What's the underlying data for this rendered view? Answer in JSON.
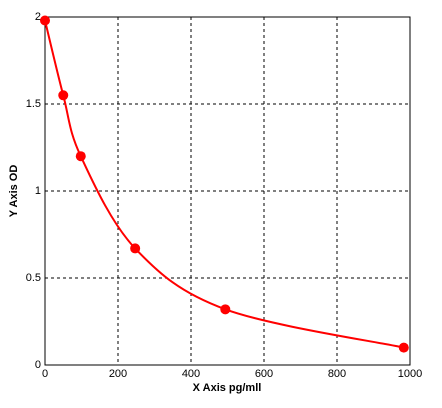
{
  "chart_data": {
    "type": "scatter",
    "x_label": "X Axis pg/mll",
    "y_label": "Y Axis OD",
    "x": [
      0,
      50,
      98,
      247,
      494,
      983
    ],
    "values": [
      1.98,
      1.55,
      1.2,
      0.67,
      0.32,
      0.1
    ],
    "color": "#ff0000",
    "line": "smooth",
    "xlim": [
      0,
      1000
    ],
    "ylim": [
      0,
      2
    ],
    "xticks": [
      0,
      200,
      400,
      600,
      800,
      1000
    ],
    "yticks": [
      0,
      0.5,
      1,
      1.5,
      2
    ],
    "grid": true
  }
}
